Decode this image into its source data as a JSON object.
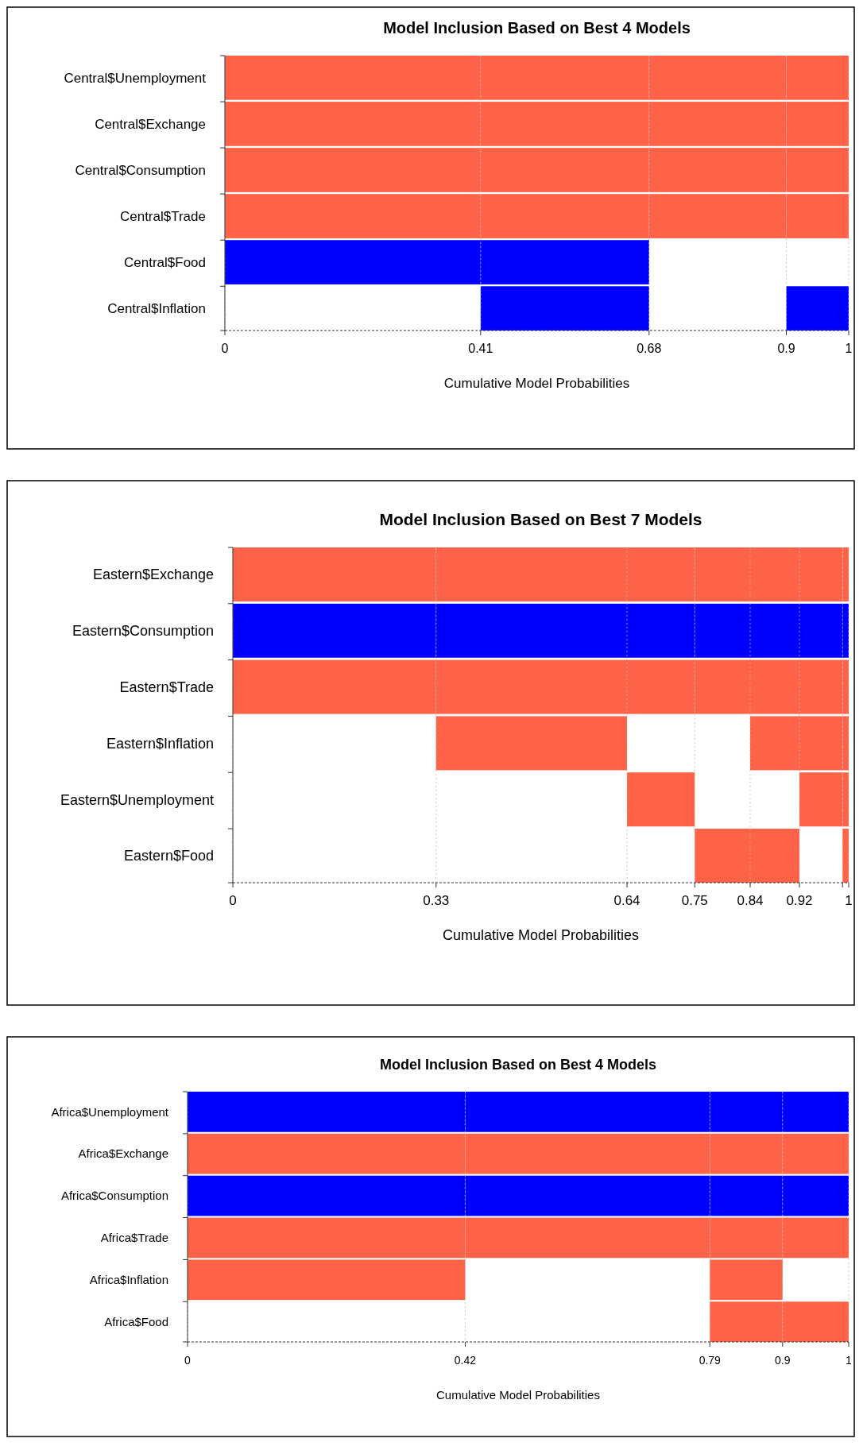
{
  "chart_data": [
    {
      "type": "bar",
      "orientation": "horizontal",
      "title": "Model Inclusion Based on Best  4  Models",
      "xlabel": "Cumulative Model Probabilities",
      "categories": [
        "Central$Unemployment",
        "Central$Exchange",
        "Central$Consumption",
        "Central$Trade",
        "Central$Food",
        "Central$Inflation"
      ],
      "xlim": [
        0,
        1
      ],
      "xticks": [
        0,
        0.41,
        0.68,
        0.9,
        1
      ],
      "grid": "x",
      "series": [
        {
          "base": [
            0,
            0,
            0,
            0,
            0,
            null
          ],
          "values": [
            0.41,
            0.41,
            0.41,
            0.41,
            0.41,
            null
          ],
          "colors": [
            "#ff6347",
            "#ff6347",
            "#ff6347",
            "#ff6347",
            "#0000ff",
            null
          ]
        },
        {
          "base": [
            0.41,
            0.41,
            0.41,
            0.41,
            0.41,
            0.41
          ],
          "values": [
            0.27,
            0.27,
            0.27,
            0.27,
            0.27,
            0.27
          ],
          "colors": [
            "#ff6347",
            "#ff6347",
            "#ff6347",
            "#ff6347",
            "#0000ff",
            "#0000ff"
          ]
        },
        {
          "base": [
            0.68,
            0.68,
            0.68,
            0.68,
            null,
            null
          ],
          "values": [
            0.22,
            0.22,
            0.22,
            0.22,
            null,
            null
          ],
          "colors": [
            "#ff6347",
            "#ff6347",
            "#ff6347",
            "#ff6347",
            null,
            null
          ]
        },
        {
          "base": [
            0.9,
            0.9,
            0.9,
            0.9,
            null,
            0.9
          ],
          "values": [
            0.1,
            0.1,
            0.1,
            0.1,
            null,
            0.1
          ],
          "colors": [
            "#ff6347",
            "#ff6347",
            "#ff6347",
            "#ff6347",
            null,
            "#0000ff"
          ]
        }
      ]
    },
    {
      "type": "bar",
      "orientation": "horizontal",
      "title": "Model Inclusion Based on Best  7  Models",
      "xlabel": "Cumulative Model Probabilities",
      "categories": [
        "Eastern$Exchange",
        "Eastern$Consumption",
        "Eastern$Trade",
        "Eastern$Inflation",
        "Eastern$Unemployment",
        "Eastern$Food"
      ],
      "xlim": [
        0,
        1
      ],
      "xticks": [
        0,
        0.33,
        0.64,
        0.75,
        0.84,
        0.92,
        {
          "value": 0.99,
          "label": null
        },
        1
      ],
      "grid": "x",
      "series": [
        {
          "base": [
            0,
            0,
            0,
            null,
            null,
            null
          ],
          "values": [
            0.33,
            0.33,
            0.33,
            null,
            null,
            null
          ],
          "colors": [
            "#ff6347",
            "#0000ff",
            "#ff6347",
            null,
            null,
            null
          ]
        },
        {
          "base": [
            0.33,
            0.33,
            0.33,
            0.33,
            null,
            null
          ],
          "values": [
            0.31,
            0.31,
            0.31,
            0.31,
            null,
            null
          ],
          "colors": [
            "#ff6347",
            "#0000ff",
            "#ff6347",
            "#ff6347",
            null,
            null
          ]
        },
        {
          "base": [
            0.64,
            0.64,
            0.64,
            null,
            0.64,
            null
          ],
          "values": [
            0.11,
            0.11,
            0.11,
            null,
            0.11,
            null
          ],
          "colors": [
            "#ff6347",
            "#0000ff",
            "#ff6347",
            null,
            "#ff6347",
            null
          ]
        },
        {
          "base": [
            0.75,
            0.75,
            0.75,
            null,
            null,
            0.75
          ],
          "values": [
            0.09,
            0.09,
            0.09,
            null,
            null,
            0.09
          ],
          "colors": [
            "#ff6347",
            "#0000ff",
            "#ff6347",
            null,
            null,
            "#ff6347"
          ]
        },
        {
          "base": [
            0.84,
            0.84,
            0.84,
            0.84,
            null,
            0.84
          ],
          "values": [
            0.08,
            0.08,
            0.08,
            0.08,
            null,
            0.08
          ],
          "colors": [
            "#ff6347",
            "#0000ff",
            "#ff6347",
            "#ff6347",
            null,
            "#ff6347"
          ]
        },
        {
          "base": [
            0.92,
            0.92,
            0.92,
            0.92,
            0.92,
            null
          ],
          "values": [
            0.07,
            0.07,
            0.07,
            0.07,
            0.07,
            null
          ],
          "colors": [
            "#ff6347",
            "#0000ff",
            "#ff6347",
            "#ff6347",
            "#ff6347",
            null
          ]
        },
        {
          "base": [
            0.99,
            0.99,
            0.99,
            0.99,
            0.99,
            0.99
          ],
          "values": [
            0.01,
            0.01,
            0.01,
            0.01,
            0.01,
            0.01
          ],
          "colors": [
            "#ff6347",
            "#0000ff",
            "#ff6347",
            "#ff6347",
            "#ff6347",
            "#ff6347"
          ]
        }
      ]
    },
    {
      "type": "bar",
      "orientation": "horizontal",
      "title": "Model Inclusion Based on Best  4  Models",
      "xlabel": "Cumulative Model Probabilities",
      "categories": [
        "Africa$Unemployment",
        "Africa$Exchange",
        "Africa$Consumption",
        "Africa$Trade",
        "Africa$Inflation",
        "Africa$Food"
      ],
      "xlim": [
        0,
        1
      ],
      "xticks": [
        0,
        0.42,
        0.79,
        0.9,
        1
      ],
      "grid": "x",
      "series": [
        {
          "base": [
            0,
            0,
            0,
            0,
            0,
            null
          ],
          "values": [
            0.42,
            0.42,
            0.42,
            0.42,
            0.42,
            null
          ],
          "colors": [
            "#0000ff",
            "#ff6347",
            "#0000ff",
            "#ff6347",
            "#ff6347",
            null
          ]
        },
        {
          "base": [
            0.42,
            0.42,
            0.42,
            0.42,
            null,
            null
          ],
          "values": [
            0.37,
            0.37,
            0.37,
            0.37,
            null,
            null
          ],
          "colors": [
            "#0000ff",
            "#ff6347",
            "#0000ff",
            "#ff6347",
            null,
            null
          ]
        },
        {
          "base": [
            0.79,
            0.79,
            0.79,
            0.79,
            0.79,
            0.79
          ],
          "values": [
            0.11,
            0.11,
            0.11,
            0.11,
            0.11,
            0.11
          ],
          "colors": [
            "#0000ff",
            "#ff6347",
            "#0000ff",
            "#ff6347",
            "#ff6347",
            "#ff6347"
          ]
        },
        {
          "base": [
            0.9,
            0.9,
            0.9,
            0.9,
            null,
            0.9
          ],
          "values": [
            0.1,
            0.1,
            0.1,
            0.1,
            null,
            0.1
          ],
          "colors": [
            "#0000ff",
            "#ff6347",
            "#0000ff",
            "#ff6347",
            null,
            "#ff6347"
          ]
        }
      ]
    }
  ]
}
